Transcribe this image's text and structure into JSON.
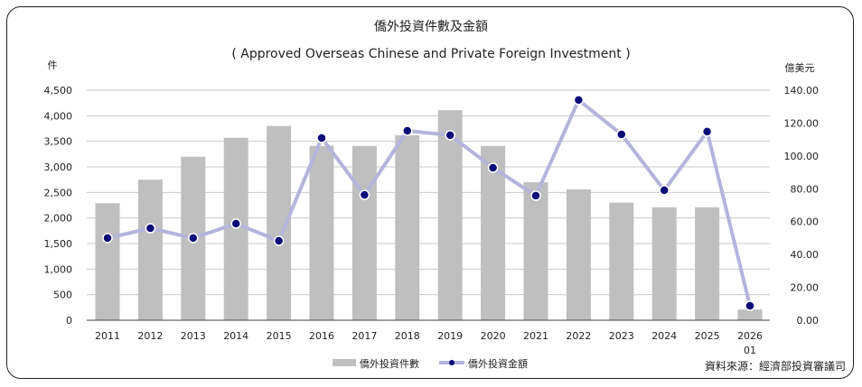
{
  "chart_data": {
    "type": "bar+line",
    "title": "僑外投資件數及金額",
    "subtitle": "( Approved Overseas Chinese and Private Foreign Investment )",
    "categories": [
      "2011",
      "2012",
      "2013",
      "2014",
      "2015",
      "2016",
      "2017",
      "2018",
      "2019",
      "2020",
      "2021",
      "2022",
      "2023",
      "2024",
      "2025",
      "2026\n01"
    ],
    "y_left": {
      "label": "件",
      "ylim": [
        0,
        4500
      ],
      "ticks": [
        "0",
        "500",
        "1,000",
        "1,500",
        "2,000",
        "2,500",
        "3,000",
        "3,500",
        "4,000",
        "4,500"
      ]
    },
    "y_right": {
      "label": "億美元",
      "ylim": [
        0,
        140
      ],
      "ticks": [
        "0.00",
        "20.00",
        "40.00",
        "60.00",
        "80.00",
        "100.00",
        "120.00",
        "140.00"
      ]
    },
    "grid": true,
    "legend_position": "bottom",
    "series": [
      {
        "name": "僑外投資件數",
        "type": "bar",
        "axis": "left",
        "color": "#bfbfbf",
        "values": [
          2290,
          2750,
          3200,
          3570,
          3800,
          3410,
          3410,
          3620,
          4110,
          3410,
          2700,
          2560,
          2300,
          2210,
          2210,
          210
        ]
      },
      {
        "name": "僑外投資金額",
        "type": "line",
        "axis": "right",
        "color": "#b4b4dc",
        "marker_color": "#0a0a78",
        "values": [
          50.0,
          56.0,
          50.0,
          58.8,
          48.3,
          110.9,
          76.3,
          115.3,
          112.6,
          92.8,
          75.8,
          134.0,
          113.1,
          79.1,
          114.8,
          8.8
        ]
      }
    ],
    "source": "資料來源：經濟部投資審議司"
  }
}
